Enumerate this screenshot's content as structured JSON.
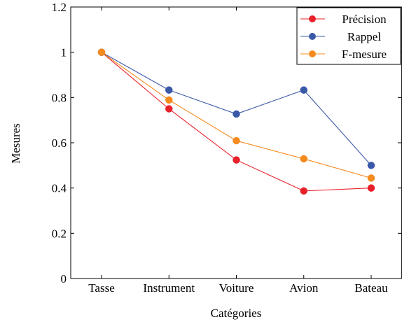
{
  "chart_data": {
    "type": "line",
    "title": "",
    "xlabel": "Catégories",
    "ylabel": "Mesures",
    "categories": [
      "Tasse",
      "Instrument",
      "Voiture",
      "Avion",
      "Bateau"
    ],
    "ylim": [
      0,
      1.2
    ],
    "yticks": [
      0,
      0.2,
      0.4,
      0.6,
      0.8,
      1,
      1.2
    ],
    "ytick_labels": [
      "0",
      "0.2",
      "0.4",
      "0.6",
      "0.8",
      "1",
      "1.2"
    ],
    "grid": false,
    "legend_position": "top-right",
    "series": [
      {
        "name": "Précision",
        "color": "#e8202a",
        "values": [
          1.0,
          0.75,
          0.524,
          0.387,
          0.4
        ]
      },
      {
        "name": "Rappel",
        "color": "#3a58a8",
        "values": [
          1.0,
          0.833,
          0.727,
          0.833,
          0.5
        ]
      },
      {
        "name": "F-mesure",
        "color": "#f58b1f",
        "values": [
          1.0,
          0.789,
          0.609,
          0.529,
          0.444
        ]
      }
    ]
  }
}
